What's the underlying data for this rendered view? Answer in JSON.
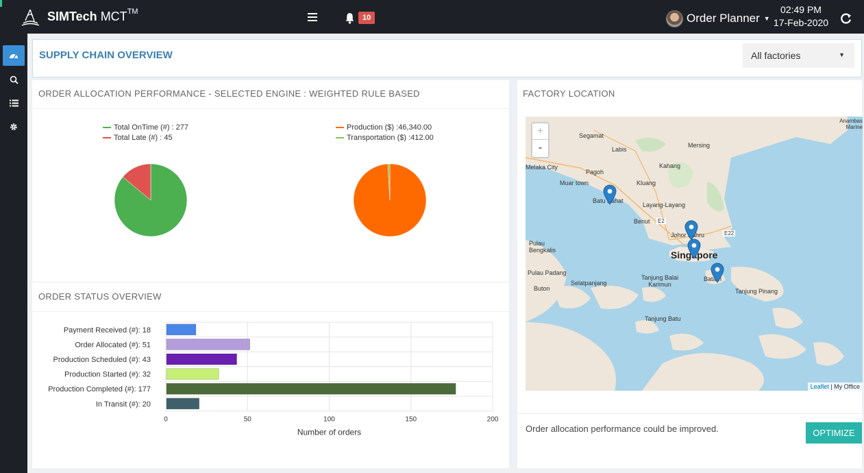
{
  "app": {
    "brand_bold": "SIMTech",
    "brand_light": " MCT",
    "brand_sup": "TM",
    "notification_count": "10",
    "user_name": "Order Planner",
    "time": "02:49 PM",
    "date": "17-Feb-2020"
  },
  "page": {
    "title": "SUPPLY CHAIN OVERVIEW",
    "factory_select": "All factories"
  },
  "allocation": {
    "title": "ORDER ALLOCATION PERFORMANCE - SELECTED ENGINE : WEIGHTED RULE BASED",
    "pie1": {
      "legend": [
        "Total OnTime (#) : 277",
        "Total Late (#) : 45"
      ],
      "values": [
        277,
        45
      ],
      "colors": [
        "#4caf50",
        "#e0524f"
      ]
    },
    "pie2": {
      "legend": [
        "Production ($) :46,340.00",
        "Transportation ($) :412.00"
      ],
      "values": [
        46340,
        412
      ],
      "colors": [
        "#ff6a00",
        "#8bc34a"
      ]
    }
  },
  "status": {
    "title": "ORDER STATUS OVERVIEW",
    "xlabel": "Number of orders"
  },
  "chart_data": [
    {
      "type": "pie",
      "labels": [
        "Total OnTime (#) : 277",
        "Total Late (#) : 45"
      ],
      "values": [
        277,
        45
      ],
      "colors": [
        "#4caf50",
        "#e0524f"
      ],
      "legend": "top"
    },
    {
      "type": "pie",
      "labels": [
        "Production ($) :46,340.00",
        "Transportation ($) :412.00"
      ],
      "values": [
        46340,
        412
      ],
      "colors": [
        "#ff6a00",
        "#8bc34a"
      ],
      "legend": "top"
    },
    {
      "type": "bar",
      "orientation": "horizontal",
      "categories": [
        "Payment Received (#): 18",
        "Order Allocated (#): 51",
        "Production Scheduled (#): 43",
        "Production Started (#): 32",
        "Production Completed (#): 177",
        "In Transit (#): 20"
      ],
      "values": [
        18,
        51,
        43,
        32,
        177,
        20
      ],
      "colors": [
        "#4a86e8",
        "#b39ddb",
        "#6a1fb0",
        "#c6ef76",
        "#4b6b3a",
        "#3f5f6b"
      ],
      "xlabel": "Number of orders",
      "xlim": [
        0,
        200
      ],
      "xticks": [
        0,
        50,
        100,
        150,
        200
      ],
      "grid": true
    }
  ],
  "factory": {
    "title": "FACTORY LOCATION",
    "message": "Order allocation performance could be improved.",
    "optimize_label": "OPTIMIZE",
    "zoom_in": "+",
    "zoom_out": "-",
    "attrib_leaflet": "Leaflet",
    "attrib_sep": " | ",
    "attrib_office": "My Office",
    "labels": {
      "segamat": "Segamat",
      "labis": "Labis",
      "mersing": "Mersing",
      "melaka": "Melaka City",
      "pagoh": "Pagoh",
      "kahang": "Kahang",
      "muar": "Muar town",
      "kluang": "Kluang",
      "batu_pahat": "Batu Pahat",
      "layang": "Layang-Layang",
      "benut": "Benut",
      "johor": "Johor Bahru",
      "singapore": "Singapore",
      "pulau_bengkalis": "Pulau Bengkalis",
      "pulau_padang": "Pulau Padang",
      "selatpanjang": "Selatpanjang",
      "tanjung_balai": "Tanjung Balai Karimun",
      "batam": "Batam",
      "tanjung_pinang": "Tanjung Pinang",
      "buton": "Buton",
      "tanjung_batu": "Tanjung Batu",
      "anambas": "Anambas Marine",
      "e2": "E2",
      "e22": "E22"
    }
  }
}
